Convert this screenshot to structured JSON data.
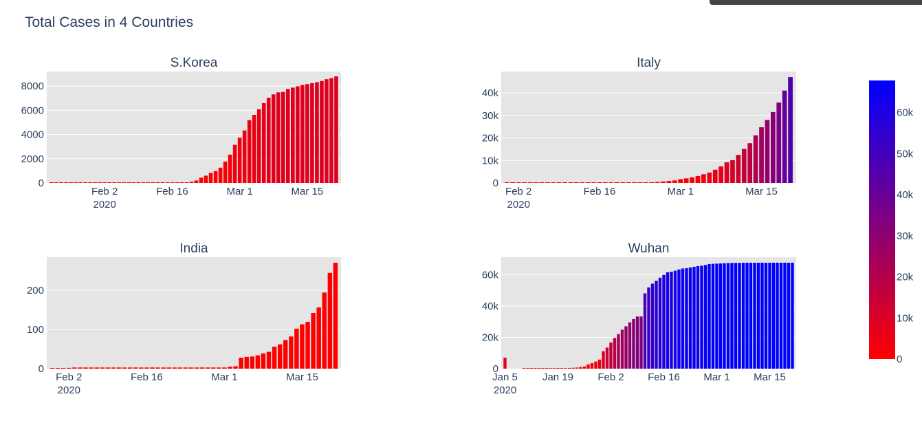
{
  "window": {
    "title": "Total Cases in 4 Countries"
  },
  "chart_data": [
    {
      "type": "bar",
      "title": "S.Korea",
      "x": [
        "2020-01-22",
        "2020-01-23",
        "2020-01-24",
        "2020-01-25",
        "2020-01-26",
        "2020-01-27",
        "2020-01-28",
        "2020-01-29",
        "2020-01-30",
        "2020-01-31",
        "2020-02-01",
        "2020-02-02",
        "2020-02-03",
        "2020-02-04",
        "2020-02-05",
        "2020-02-06",
        "2020-02-07",
        "2020-02-08",
        "2020-02-09",
        "2020-02-10",
        "2020-02-11",
        "2020-02-12",
        "2020-02-13",
        "2020-02-14",
        "2020-02-15",
        "2020-02-16",
        "2020-02-17",
        "2020-02-18",
        "2020-02-19",
        "2020-02-20",
        "2020-02-21",
        "2020-02-22",
        "2020-02-23",
        "2020-02-24",
        "2020-02-25",
        "2020-02-26",
        "2020-02-27",
        "2020-02-28",
        "2020-02-29",
        "2020-03-01",
        "2020-03-02",
        "2020-03-03",
        "2020-03-04",
        "2020-03-05",
        "2020-03-06",
        "2020-03-07",
        "2020-03-08",
        "2020-03-09",
        "2020-03-10",
        "2020-03-11",
        "2020-03-12",
        "2020-03-13",
        "2020-03-14",
        "2020-03-15",
        "2020-03-16",
        "2020-03-17",
        "2020-03-18",
        "2020-03-19",
        "2020-03-20",
        "2020-03-21"
      ],
      "y": [
        1,
        1,
        2,
        2,
        3,
        4,
        4,
        4,
        4,
        11,
        12,
        15,
        15,
        16,
        19,
        23,
        24,
        24,
        25,
        27,
        28,
        28,
        28,
        28,
        28,
        29,
        30,
        31,
        31,
        104,
        204,
        433,
        602,
        833,
        977,
        1261,
        1766,
        2337,
        3150,
        3736,
        4335,
        5186,
        5621,
        6088,
        6593,
        7041,
        7314,
        7478,
        7513,
        7755,
        7869,
        7979,
        8086,
        8162,
        8236,
        8320,
        8413,
        8565,
        8652,
        8799
      ],
      "xticks": [
        "2020-02-02",
        "2020-02-16",
        "2020-03-01",
        "2020-03-15"
      ],
      "xtick_labels": [
        "Feb 2",
        "Feb 16",
        "Mar 1",
        "Mar 15"
      ],
      "xtick_sublabel": "2020",
      "ylim": [
        0,
        9200
      ],
      "yticks": [
        0,
        2000,
        4000,
        6000,
        8000
      ],
      "ytick_labels": [
        "0",
        "2000",
        "4000",
        "6000",
        "8000"
      ],
      "xlim": [
        "2020-01-21",
        "2020-03-22"
      ],
      "grid": true
    },
    {
      "type": "bar",
      "title": "Italy",
      "x": [
        "2020-01-31",
        "2020-02-01",
        "2020-02-02",
        "2020-02-03",
        "2020-02-04",
        "2020-02-05",
        "2020-02-06",
        "2020-02-07",
        "2020-02-08",
        "2020-02-09",
        "2020-02-10",
        "2020-02-11",
        "2020-02-12",
        "2020-02-13",
        "2020-02-14",
        "2020-02-15",
        "2020-02-16",
        "2020-02-17",
        "2020-02-18",
        "2020-02-19",
        "2020-02-20",
        "2020-02-21",
        "2020-02-22",
        "2020-02-23",
        "2020-02-24",
        "2020-02-25",
        "2020-02-26",
        "2020-02-27",
        "2020-02-28",
        "2020-02-29",
        "2020-03-01",
        "2020-03-02",
        "2020-03-03",
        "2020-03-04",
        "2020-03-05",
        "2020-03-06",
        "2020-03-07",
        "2020-03-08",
        "2020-03-09",
        "2020-03-10",
        "2020-03-11",
        "2020-03-12",
        "2020-03-13",
        "2020-03-14",
        "2020-03-15",
        "2020-03-16",
        "2020-03-17",
        "2020-03-18",
        "2020-03-19",
        "2020-03-20"
      ],
      "y": [
        2,
        2,
        2,
        2,
        2,
        2,
        2,
        3,
        3,
        3,
        3,
        3,
        3,
        3,
        3,
        3,
        3,
        3,
        3,
        3,
        3,
        20,
        62,
        155,
        229,
        322,
        453,
        655,
        888,
        1128,
        1694,
        2036,
        2502,
        3089,
        3858,
        4636,
        5883,
        7375,
        9172,
        10149,
        12462,
        15113,
        17660,
        21157,
        24747,
        27980,
        31506,
        35713,
        41035,
        47021
      ],
      "xticks": [
        "2020-02-02",
        "2020-02-16",
        "2020-03-01",
        "2020-03-15"
      ],
      "xtick_labels": [
        "Feb 2",
        "Feb 16",
        "Mar 1",
        "Mar 15"
      ],
      "xtick_sublabel": "2020",
      "ylim": [
        0,
        49500
      ],
      "yticks": [
        0,
        10000,
        20000,
        30000,
        40000
      ],
      "ytick_labels": [
        "0",
        "10k",
        "20k",
        "30k",
        "40k"
      ],
      "xlim": [
        "2020-01-30",
        "2020-03-21"
      ],
      "grid": true
    },
    {
      "type": "bar",
      "title": "India",
      "x": [
        "2020-01-30",
        "2020-01-31",
        "2020-02-01",
        "2020-02-02",
        "2020-02-03",
        "2020-02-04",
        "2020-02-05",
        "2020-02-06",
        "2020-02-07",
        "2020-02-08",
        "2020-02-09",
        "2020-02-10",
        "2020-02-11",
        "2020-02-12",
        "2020-02-13",
        "2020-02-14",
        "2020-02-15",
        "2020-02-16",
        "2020-02-17",
        "2020-02-18",
        "2020-02-19",
        "2020-02-20",
        "2020-02-21",
        "2020-02-22",
        "2020-02-23",
        "2020-02-24",
        "2020-02-25",
        "2020-02-26",
        "2020-02-27",
        "2020-02-28",
        "2020-02-29",
        "2020-03-01",
        "2020-03-02",
        "2020-03-03",
        "2020-03-04",
        "2020-03-05",
        "2020-03-06",
        "2020-03-07",
        "2020-03-08",
        "2020-03-09",
        "2020-03-10",
        "2020-03-11",
        "2020-03-12",
        "2020-03-13",
        "2020-03-14",
        "2020-03-15",
        "2020-03-16",
        "2020-03-17",
        "2020-03-18",
        "2020-03-19",
        "2020-03-20",
        "2020-03-21"
      ],
      "y": [
        1,
        1,
        1,
        2,
        3,
        3,
        3,
        3,
        3,
        3,
        3,
        3,
        3,
        3,
        3,
        3,
        3,
        3,
        3,
        3,
        3,
        3,
        3,
        3,
        3,
        3,
        3,
        3,
        3,
        3,
        3,
        3,
        5,
        6,
        28,
        30,
        31,
        34,
        39,
        43,
        56,
        62,
        73,
        82,
        102,
        113,
        119,
        142,
        156,
        194,
        244,
        270
      ],
      "xticks": [
        "2020-02-02",
        "2020-02-16",
        "2020-03-01",
        "2020-03-15"
      ],
      "xtick_labels": [
        "Feb 2",
        "Feb 16",
        "Mar 1",
        "Mar 15"
      ],
      "xtick_sublabel": "2020",
      "ylim": [
        0,
        284
      ],
      "yticks": [
        0,
        100,
        200
      ],
      "ytick_labels": [
        "0",
        "100",
        "200"
      ],
      "xlim": [
        "2020-01-29",
        "2020-03-22"
      ],
      "grid": true
    },
    {
      "type": "bar",
      "title": "Wuhan",
      "x": [
        "2020-01-05",
        "2020-01-10",
        "2020-01-11",
        "2020-01-12",
        "2020-01-13",
        "2020-01-14",
        "2020-01-15",
        "2020-01-16",
        "2020-01-17",
        "2020-01-18",
        "2020-01-19",
        "2020-01-20",
        "2020-01-21",
        "2020-01-22",
        "2020-01-23",
        "2020-01-24",
        "2020-01-25",
        "2020-01-26",
        "2020-01-27",
        "2020-01-28",
        "2020-01-29",
        "2020-01-30",
        "2020-01-31",
        "2020-02-01",
        "2020-02-02",
        "2020-02-03",
        "2020-02-04",
        "2020-02-05",
        "2020-02-06",
        "2020-02-07",
        "2020-02-08",
        "2020-02-09",
        "2020-02-10",
        "2020-02-11",
        "2020-02-12",
        "2020-02-13",
        "2020-02-14",
        "2020-02-15",
        "2020-02-16",
        "2020-02-17",
        "2020-02-18",
        "2020-02-19",
        "2020-02-20",
        "2020-02-21",
        "2020-02-22",
        "2020-02-23",
        "2020-02-24",
        "2020-02-25",
        "2020-02-26",
        "2020-02-27",
        "2020-02-28",
        "2020-02-29",
        "2020-03-01",
        "2020-03-02",
        "2020-03-03",
        "2020-03-04",
        "2020-03-05",
        "2020-03-06",
        "2020-03-07",
        "2020-03-08",
        "2020-03-09",
        "2020-03-10",
        "2020-03-11",
        "2020-03-12",
        "2020-03-13",
        "2020-03-14",
        "2020-03-15",
        "2020-03-16",
        "2020-03-17",
        "2020-03-18",
        "2020-03-19",
        "2020-03-20",
        "2020-03-21"
      ],
      "y": [
        7000,
        41,
        41,
        41,
        41,
        41,
        41,
        45,
        62,
        121,
        198,
        270,
        375,
        444,
        549,
        729,
        1052,
        1423,
        2714,
        3554,
        4586,
        5806,
        11177,
        13522,
        16678,
        19665,
        22112,
        24953,
        27100,
        29631,
        31728,
        33366,
        33366,
        48206,
        51986,
        54406,
        56249,
        58182,
        59989,
        61682,
        62031,
        62662,
        63454,
        64084,
        64287,
        64786,
        65187,
        65596,
        65914,
        66337,
        66907,
        67103,
        67217,
        67332,
        67466,
        67592,
        67666,
        67707,
        67743,
        67760,
        67773,
        67781,
        67786,
        67790,
        67794,
        67798,
        67799,
        67800,
        67800,
        67800,
        67800,
        67800,
        67800
      ],
      "xticks": [
        "2020-01-05",
        "2020-01-19",
        "2020-02-02",
        "2020-02-16",
        "2020-03-01",
        "2020-03-15"
      ],
      "xtick_labels": [
        "Jan 5",
        "Jan 19",
        "Feb 2",
        "Feb 16",
        "Mar 1",
        "Mar 15"
      ],
      "xtick_sublabel": "2020",
      "ylim": [
        0,
        71300
      ],
      "yticks": [
        0,
        20000,
        40000,
        60000
      ],
      "ytick_labels": [
        "0",
        "20k",
        "40k",
        "60k"
      ],
      "xlim": [
        "2020-01-04",
        "2020-03-22"
      ],
      "grid": true
    }
  ],
  "colorbar": {
    "range": [
      0,
      67800
    ],
    "colors": [
      "#ff0000",
      "#0000ff"
    ],
    "ticks": [
      0,
      10000,
      20000,
      30000,
      40000,
      50000,
      60000
    ],
    "tick_labels": [
      "0",
      "10k",
      "20k",
      "30k",
      "40k",
      "50k",
      "60k"
    ]
  }
}
